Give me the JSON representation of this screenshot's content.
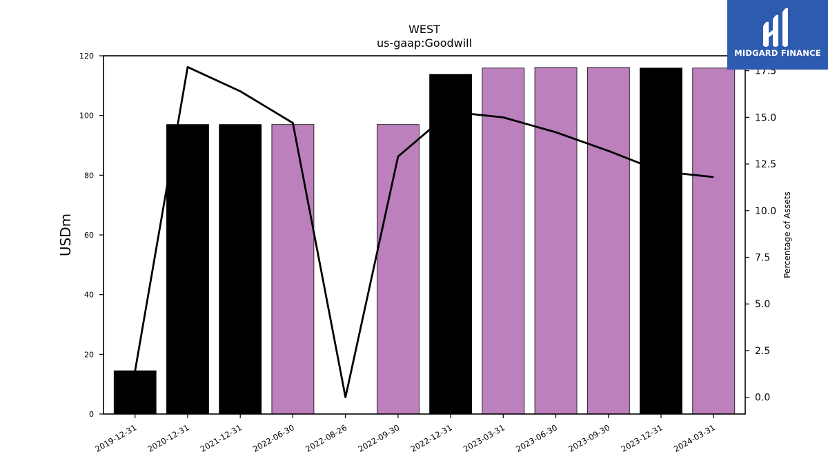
{
  "chart_data": {
    "type": "bar",
    "title": "WEST",
    "subtitle": "us-gaap:Goodwill",
    "ylabel": "USDm",
    "y2label": "Percentage of Assets",
    "ylim": [
      0,
      120
    ],
    "y2lim": [
      -0.9,
      18.3
    ],
    "yticks": [
      0,
      20,
      40,
      60,
      80,
      100,
      120
    ],
    "y2ticks": [
      0.0,
      2.5,
      5.0,
      7.5,
      10.0,
      12.5,
      15.0,
      17.5
    ],
    "categories": [
      "2019-12-31",
      "2020-12-31",
      "2021-12-31",
      "2022-06-30",
      "2022-08-26",
      "2022-09-30",
      "2022-12-31",
      "2023-03-31",
      "2023-06-30",
      "2023-09-30",
      "2023-12-31",
      "2024-03-31"
    ],
    "series": [
      {
        "kind": "bar",
        "values": [
          14.5,
          97,
          97,
          97,
          0,
          97,
          113.8,
          115.9,
          116.1,
          116.1,
          115.9,
          115.9
        ],
        "bar_types": [
          "annual",
          "annual",
          "annual",
          "quarterly",
          "quarterly",
          "quarterly",
          "annual",
          "quarterly",
          "quarterly",
          "quarterly",
          "annual",
          "quarterly"
        ]
      },
      {
        "kind": "line",
        "axis": "right",
        "values": [
          1.4,
          17.7,
          16.4,
          14.7,
          0.0,
          12.9,
          15.3,
          15.0,
          14.2,
          13.2,
          12.1,
          11.8
        ]
      }
    ],
    "colors": {
      "annual": "#000000",
      "quarterly": "#bc80bd",
      "line": "#000000"
    }
  },
  "logo": {
    "text": "MIDGARD FINANCE",
    "background": "#2d5bb0"
  }
}
